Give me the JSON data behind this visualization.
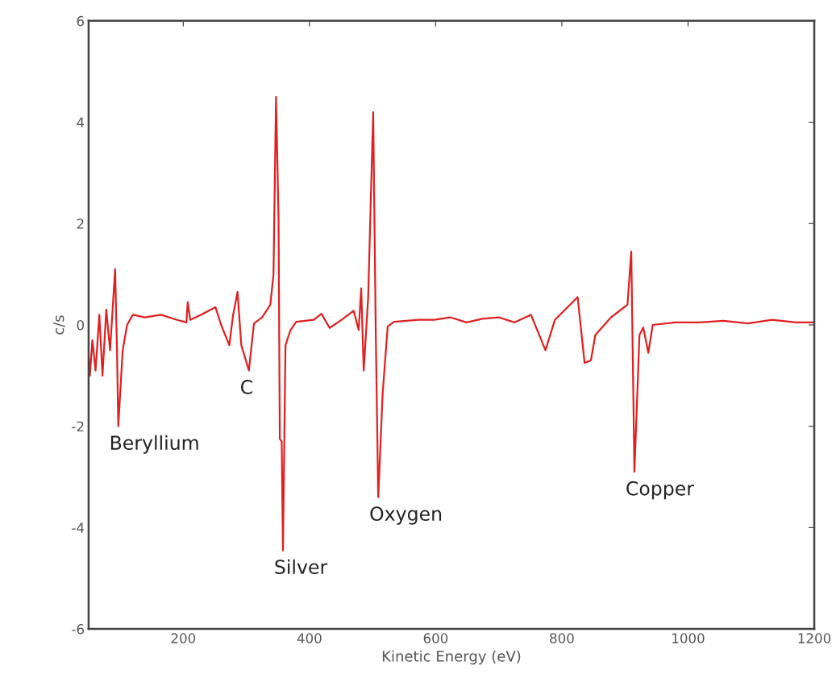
{
  "chart_data": {
    "type": "line",
    "xlabel": "Kinetic Energy (eV)",
    "ylabel": "c/s",
    "x": [
      50,
      52,
      56,
      61,
      67,
      72,
      78,
      84,
      88,
      92,
      95,
      97,
      104,
      111,
      120,
      139,
      165,
      190,
      205,
      207,
      211,
      228,
      251,
      260,
      273,
      279,
      286,
      292,
      304,
      312,
      325,
      338,
      343,
      347,
      351,
      353,
      356,
      358,
      362,
      370,
      379,
      407,
      419,
      432,
      451,
      470,
      478,
      482,
      486,
      493,
      501,
      505,
      509,
      516,
      524,
      534,
      572,
      598,
      623,
      649,
      674,
      700,
      725,
      751,
      774,
      789,
      825,
      836,
      846,
      853,
      878,
      904,
      910,
      915,
      923,
      929,
      937,
      944,
      980,
      1018,
      1056,
      1095,
      1133,
      1171,
      1200
    ],
    "series": [
      {
        "color": "#e02020",
        "values": [
          -0.6,
          -1.0,
          -0.3,
          -0.9,
          0.2,
          -1.0,
          0.3,
          -0.5,
          0.3,
          1.1,
          -0.5,
          -2.0,
          -0.5,
          0.0,
          0.2,
          0.15,
          0.2,
          0.1,
          0.05,
          0.45,
          0.1,
          0.2,
          0.35,
          0.0,
          -0.4,
          0.2,
          0.65,
          -0.4,
          -0.9,
          0.03,
          0.15,
          0.4,
          1.0,
          4.5,
          2.1,
          -2.25,
          -2.3,
          -4.45,
          -0.4,
          -0.1,
          0.06,
          0.1,
          0.22,
          -0.06,
          0.1,
          0.28,
          -0.1,
          0.72,
          -0.9,
          0.53,
          4.2,
          -0.1,
          -3.4,
          -1.35,
          -0.03,
          0.06,
          0.1,
          0.1,
          0.15,
          0.05,
          0.12,
          0.15,
          0.05,
          0.2,
          -0.5,
          0.1,
          0.55,
          -0.75,
          -0.7,
          -0.2,
          0.15,
          0.4,
          1.45,
          -2.9,
          -0.2,
          -0.05,
          -0.55,
          0.0,
          0.05,
          0.05,
          0.08,
          0.03,
          0.1,
          0.05,
          0.05
        ]
      }
    ],
    "xlim": [
      50,
      1200
    ],
    "xticks": [
      200,
      400,
      600,
      800,
      1000,
      1200
    ],
    "ylim": [
      -6,
      6
    ],
    "yticks": [
      -6,
      -4,
      -2,
      0,
      2,
      4,
      6
    ],
    "grid": false,
    "annotations": [
      {
        "text": "Beryllium",
        "x": 97,
        "y": -2.0
      },
      {
        "text": "C",
        "x": 304,
        "y": -0.9
      },
      {
        "text": "Silver",
        "x": 358,
        "y": -4.45
      },
      {
        "text": "Oxygen",
        "x": 509,
        "y": -3.4
      },
      {
        "text": "Copper",
        "x": 915,
        "y": -2.9
      }
    ]
  }
}
